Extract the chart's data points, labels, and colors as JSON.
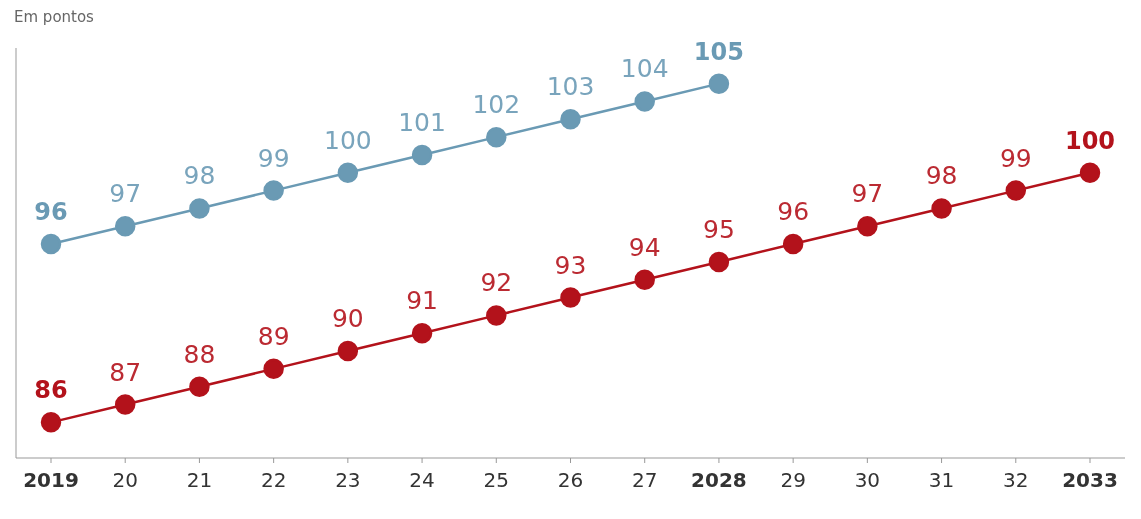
{
  "chart_data": {
    "type": "line",
    "ylabel": "Em pontos",
    "categories": [
      "2019",
      "20",
      "21",
      "22",
      "23",
      "24",
      "25",
      "26",
      "27",
      "2028",
      "29",
      "30",
      "31",
      "32",
      "2033"
    ],
    "series": [
      {
        "color": "#6a9ab4",
        "values": [
          96,
          97,
          98,
          99,
          100,
          101,
          102,
          103,
          104,
          105,
          null,
          null,
          null,
          null,
          null
        ]
      },
      {
        "color": "#b3121b",
        "values": [
          86,
          87,
          88,
          89,
          90,
          91,
          92,
          93,
          94,
          95,
          96,
          97,
          98,
          99,
          100
        ]
      }
    ],
    "data_labels": true,
    "marker": "circle",
    "tick_labels": "x"
  }
}
